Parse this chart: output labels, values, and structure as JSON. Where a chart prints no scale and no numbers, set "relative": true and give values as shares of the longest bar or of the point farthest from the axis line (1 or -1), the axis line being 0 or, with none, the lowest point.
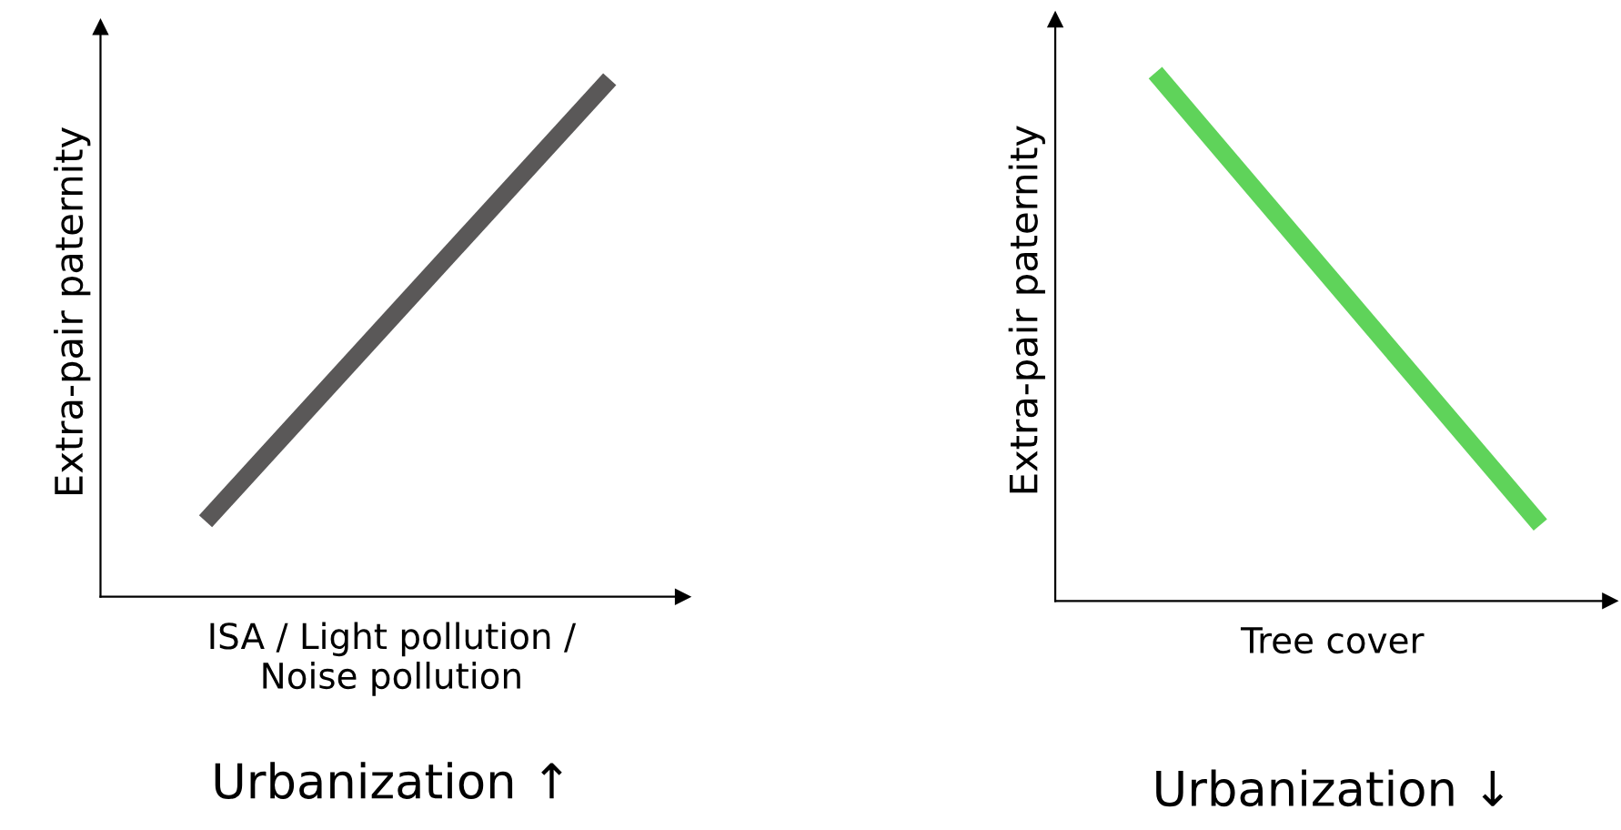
{
  "chart_data": [
    {
      "type": "line",
      "relative": true,
      "categories": [
        null,
        null
      ],
      "xlabel": "ISA / Light pollution /\nNoise pollution",
      "ylabel": "Extra-pair paternity",
      "annotations": [
        "Urbanization ↑"
      ],
      "legend": false,
      "marker": "none",
      "line_style": "solid",
      "tick_labels": false,
      "series": [
        {
          "color": "#5a5858",
          "values": [
            0.146,
            1
          ]
        }
      ]
    },
    {
      "type": "line",
      "relative": true,
      "categories": [
        null,
        null
      ],
      "xlabel": "Tree cover",
      "ylabel": "Extra-pair paternity",
      "annotations": [
        "Urbanization ↓"
      ],
      "legend": false,
      "marker": "none",
      "line_style": "solid",
      "tick_labels": false,
      "series": [
        {
          "color": "#5fd35a",
          "values": [
            1,
            0.144
          ]
        }
      ]
    }
  ]
}
